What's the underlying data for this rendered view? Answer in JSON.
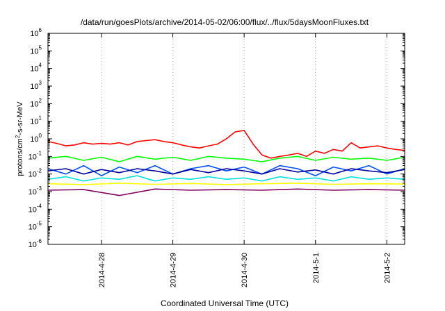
{
  "chart_data": {
    "type": "line",
    "title": "/data/run/goesPlots/archive/2014-05-02/06:00/flux/../flux/5daysMoonFluxes.txt",
    "xlabel": "Coordinated Universal Time (UTC)",
    "ylabel": "protons/cm2-s-sr-MeV",
    "ylabel_parts": {
      "before": "protons/cm",
      "sup": "2",
      "after": "-s-sr-MeV"
    },
    "yscale": "log",
    "ylim": [
      1e-06,
      1000000.0
    ],
    "y_ticks": [
      {
        "base": "10",
        "exp": "-6"
      },
      {
        "base": "10",
        "exp": "-5"
      },
      {
        "base": "10",
        "exp": "-4"
      },
      {
        "base": "10",
        "exp": "-3"
      },
      {
        "base": "10",
        "exp": "-2"
      },
      {
        "base": "10",
        "exp": "-1"
      },
      {
        "base": "10",
        "exp": "0"
      },
      {
        "base": "10",
        "exp": "1"
      },
      {
        "base": "10",
        "exp": "2"
      },
      {
        "base": "10",
        "exp": "3"
      },
      {
        "base": "10",
        "exp": "4"
      },
      {
        "base": "10",
        "exp": "5"
      },
      {
        "base": "10",
        "exp": "6"
      }
    ],
    "x_axis": {
      "type": "date",
      "start": "2014-04-27T06:00",
      "end": "2014-05-02T06:00"
    },
    "x_ticks": [
      {
        "label": "2014-4-28",
        "at": "2014-04-28T00:00"
      },
      {
        "label": "2014-4-29",
        "at": "2014-04-29T00:00"
      },
      {
        "label": "2014-4-30",
        "at": "2014-04-30T00:00"
      },
      {
        "label": "2014-5-1",
        "at": "2014-05-01T00:00"
      },
      {
        "label": "2014-5-2",
        "at": "2014-05-02T00:00"
      }
    ],
    "grid": "vertical dotted at x ticks",
    "legend": "none",
    "series": [
      {
        "color": "#ff0000",
        "x": [
          "2014-04-27T06:00",
          "2014-04-27T09:00",
          "2014-04-27T12:00",
          "2014-04-27T15:00",
          "2014-04-27T18:00",
          "2014-04-27T21:00",
          "2014-04-28T00:00",
          "2014-04-28T03:00",
          "2014-04-28T06:00",
          "2014-04-28T09:00",
          "2014-04-28T12:00",
          "2014-04-28T15:00",
          "2014-04-28T18:00",
          "2014-04-28T21:00",
          "2014-04-29T00:00",
          "2014-04-29T03:00",
          "2014-04-29T06:00",
          "2014-04-29T09:00",
          "2014-04-29T12:00",
          "2014-04-29T15:00",
          "2014-04-29T18:00",
          "2014-04-29T21:00",
          "2014-04-30T00:00",
          "2014-04-30T03:00",
          "2014-04-30T06:00",
          "2014-04-30T09:00",
          "2014-04-30T12:00",
          "2014-04-30T15:00",
          "2014-04-30T18:00",
          "2014-04-30T21:00",
          "2014-05-01T00:00",
          "2014-05-01T03:00",
          "2014-05-01T06:00",
          "2014-05-01T09:00",
          "2014-05-01T12:00",
          "2014-05-01T15:00",
          "2014-05-01T18:00",
          "2014-05-01T21:00",
          "2014-05-02T00:00",
          "2014-05-02T03:00",
          "2014-05-02T06:00"
        ],
        "y": [
          0.7,
          0.55,
          0.4,
          0.45,
          0.6,
          0.5,
          0.55,
          0.5,
          0.6,
          0.45,
          0.7,
          0.8,
          0.9,
          0.7,
          0.6,
          0.45,
          0.35,
          0.3,
          0.4,
          0.5,
          1.0,
          2.5,
          3.0,
          0.5,
          0.12,
          0.08,
          0.1,
          0.12,
          0.15,
          0.1,
          0.2,
          0.15,
          0.25,
          0.2,
          0.6,
          0.3,
          0.35,
          0.4,
          0.3,
          0.25,
          0.22
        ]
      },
      {
        "color": "#00ff00",
        "x": [
          "2014-04-27T06:00",
          "2014-04-27T12:00",
          "2014-04-27T18:00",
          "2014-04-28T00:00",
          "2014-04-28T06:00",
          "2014-04-28T12:00",
          "2014-04-28T18:00",
          "2014-04-29T00:00",
          "2014-04-29T06:00",
          "2014-04-29T12:00",
          "2014-04-29T18:00",
          "2014-04-30T00:00",
          "2014-04-30T06:00",
          "2014-04-30T12:00",
          "2014-04-30T18:00",
          "2014-05-01T00:00",
          "2014-05-01T06:00",
          "2014-05-01T12:00",
          "2014-05-01T18:00",
          "2014-05-02T00:00",
          "2014-05-02T06:00"
        ],
        "y": [
          0.08,
          0.1,
          0.06,
          0.09,
          0.05,
          0.1,
          0.07,
          0.09,
          0.06,
          0.1,
          0.08,
          0.07,
          0.05,
          0.08,
          0.1,
          0.06,
          0.09,
          0.07,
          0.08,
          0.06,
          0.09
        ]
      },
      {
        "color": "#00e0e0",
        "x": [
          "2014-04-27T06:00",
          "2014-04-27T12:00",
          "2014-04-27T18:00",
          "2014-04-28T00:00",
          "2014-04-28T06:00",
          "2014-04-28T12:00",
          "2014-04-28T18:00",
          "2014-04-29T00:00",
          "2014-04-29T06:00",
          "2014-04-29T12:00",
          "2014-04-29T18:00",
          "2014-04-30T00:00",
          "2014-04-30T06:00",
          "2014-04-30T12:00",
          "2014-04-30T18:00",
          "2014-05-01T00:00",
          "2014-05-01T06:00",
          "2014-05-01T12:00",
          "2014-05-01T18:00",
          "2014-05-02T00:00",
          "2014-05-02T06:00"
        ],
        "y": [
          0.005,
          0.007,
          0.004,
          0.006,
          0.005,
          0.008,
          0.004,
          0.006,
          0.005,
          0.007,
          0.005,
          0.006,
          0.004,
          0.007,
          0.005,
          0.006,
          0.004,
          0.007,
          0.005,
          0.006,
          0.005
        ]
      },
      {
        "color": "#0050ff",
        "x": [
          "2014-04-27T06:00",
          "2014-04-27T12:00",
          "2014-04-27T18:00",
          "2014-04-28T00:00",
          "2014-04-28T06:00",
          "2014-04-28T12:00",
          "2014-04-28T18:00",
          "2014-04-29T00:00",
          "2014-04-29T06:00",
          "2014-04-29T12:00",
          "2014-04-29T18:00",
          "2014-04-30T00:00",
          "2014-04-30T06:00",
          "2014-04-30T12:00",
          "2014-04-30T18:00",
          "2014-05-01T00:00",
          "2014-05-01T06:00",
          "2014-05-01T12:00",
          "2014-05-01T18:00",
          "2014-05-02T00:00",
          "2014-05-02T06:00"
        ],
        "y": [
          0.02,
          0.01,
          0.03,
          0.008,
          0.025,
          0.012,
          0.03,
          0.01,
          0.02,
          0.03,
          0.015,
          0.025,
          0.01,
          0.03,
          0.02,
          0.008,
          0.025,
          0.015,
          0.03,
          0.01,
          0.02
        ]
      },
      {
        "color": "#0000a0",
        "x": [
          "2014-04-27T06:00",
          "2014-04-27T12:00",
          "2014-04-27T18:00",
          "2014-04-28T00:00",
          "2014-04-28T06:00",
          "2014-04-28T12:00",
          "2014-04-28T18:00",
          "2014-04-29T00:00",
          "2014-04-29T06:00",
          "2014-04-29T12:00",
          "2014-04-29T18:00",
          "2014-04-30T00:00",
          "2014-04-30T06:00",
          "2014-04-30T12:00",
          "2014-04-30T18:00",
          "2014-05-01T00:00",
          "2014-05-01T06:00",
          "2014-05-01T12:00",
          "2014-05-01T18:00",
          "2014-05-02T00:00",
          "2014-05-02T06:00"
        ],
        "y": [
          0.015,
          0.02,
          0.01,
          0.018,
          0.012,
          0.02,
          0.015,
          0.01,
          0.018,
          0.012,
          0.02,
          0.015,
          0.01,
          0.02,
          0.013,
          0.017,
          0.01,
          0.02,
          0.015,
          0.012,
          0.018
        ]
      },
      {
        "color": "#ffff00",
        "x": [
          "2014-04-27T06:00",
          "2014-04-27T18:00",
          "2014-04-28T06:00",
          "2014-04-28T18:00",
          "2014-04-29T06:00",
          "2014-04-29T18:00",
          "2014-04-30T06:00",
          "2014-04-30T18:00",
          "2014-05-01T06:00",
          "2014-05-01T18:00",
          "2014-05-02T06:00"
        ],
        "y": [
          0.0028,
          0.0025,
          0.003,
          0.0026,
          0.0029,
          0.0025,
          0.0028,
          0.003,
          0.0026,
          0.0028,
          0.0027
        ]
      },
      {
        "color": "#800060",
        "x": [
          "2014-04-27T06:00",
          "2014-04-27T18:00",
          "2014-04-28T06:00",
          "2014-04-28T18:00",
          "2014-04-29T06:00",
          "2014-04-29T18:00",
          "2014-04-30T06:00",
          "2014-04-30T18:00",
          "2014-05-01T06:00",
          "2014-05-01T18:00",
          "2014-05-02T06:00"
        ],
        "y": [
          0.0012,
          0.0013,
          0.0006,
          0.0014,
          0.0012,
          0.0013,
          0.0012,
          0.0014,
          0.0012,
          0.0013,
          0.0012
        ]
      }
    ]
  }
}
